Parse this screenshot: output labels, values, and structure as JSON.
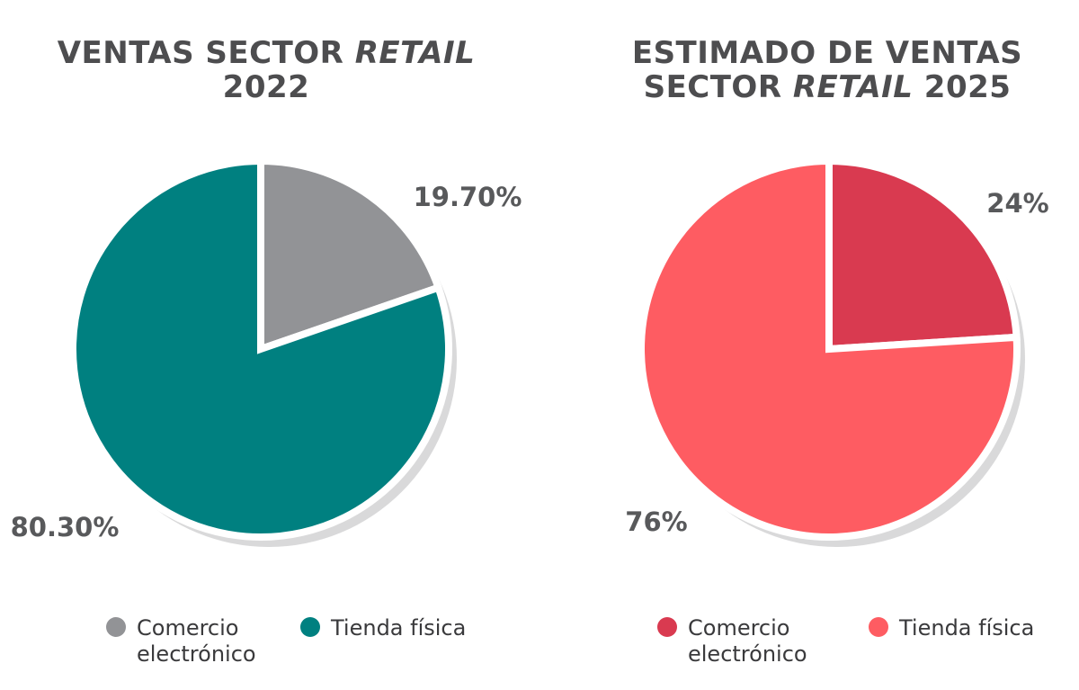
{
  "chart_data": [
    {
      "type": "pie",
      "title_parts": [
        "VENTAS SECTOR ",
        "RETAIL",
        "2022"
      ],
      "slices": [
        {
          "label": "Comercio electrónico",
          "value": 19.7,
          "value_label": "19.70%",
          "color": "#929396"
        },
        {
          "label": "Tienda física",
          "value": 80.3,
          "value_label": "80.30%",
          "color": "#008080"
        }
      ],
      "legend": [
        {
          "label": "Comercio electrónico",
          "color": "#929396"
        },
        {
          "label": "Tienda física",
          "color": "#008080"
        }
      ],
      "legend_position": "bottom"
    },
    {
      "type": "pie",
      "title_parts": [
        "ESTIMADO DE VENTAS",
        "SECTOR ",
        "RETAIL",
        " 2025"
      ],
      "slices": [
        {
          "label": "Comercio electrónico",
          "value": 24,
          "value_label": "24%",
          "color": "#d93a50"
        },
        {
          "label": "Tienda física",
          "value": 76,
          "value_label": "76%",
          "color": "#fe5c62"
        }
      ],
      "legend": [
        {
          "label": "Comercio electrónico",
          "color": "#d93a50"
        },
        {
          "label": "Tienda física",
          "color": "#fe5c62"
        }
      ],
      "legend_position": "bottom"
    }
  ]
}
